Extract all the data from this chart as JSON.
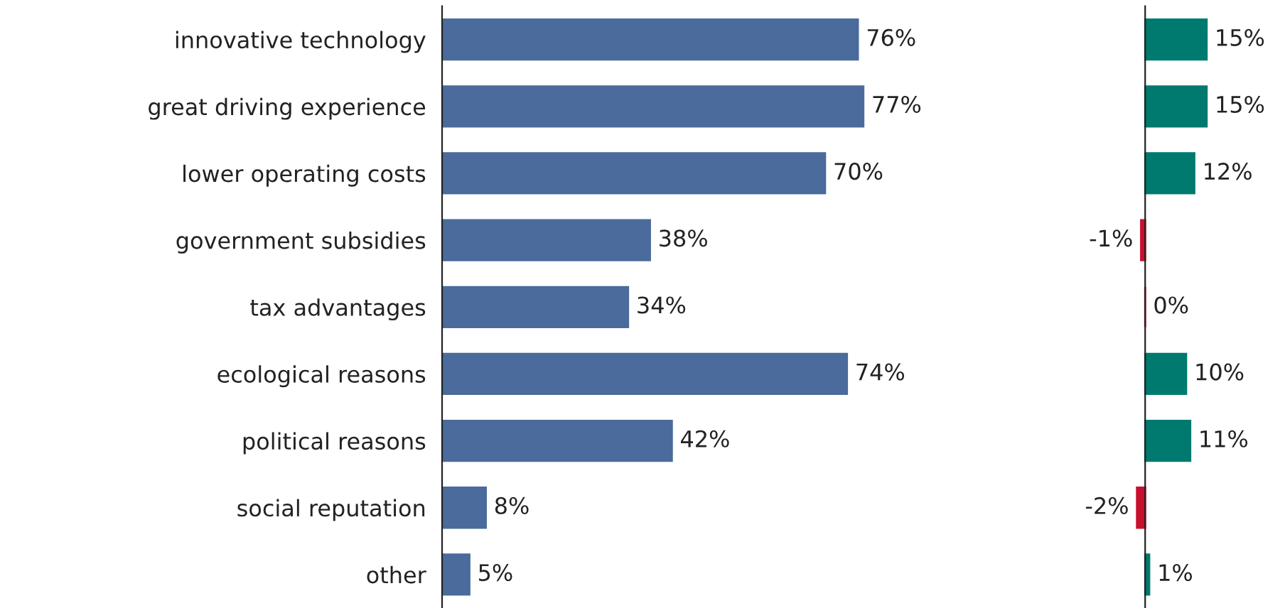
{
  "chart_data": [
    {
      "type": "bar",
      "orientation": "horizontal",
      "categories": [
        "innovative technology",
        "great driving experience",
        "lower operating costs",
        "government subsidies",
        "tax advantages",
        "ecological reasons",
        "political reasons",
        "social reputation",
        "other"
      ],
      "values": [
        76,
        77,
        70,
        38,
        34,
        74,
        42,
        8,
        5
      ],
      "color": "#4a6b9b",
      "value_labels": [
        "76%",
        "77%",
        "70%",
        "38%",
        "34%",
        "74%",
        "42%",
        "8%",
        "5%"
      ],
      "grid": false,
      "legend": false
    },
    {
      "type": "bar",
      "orientation": "horizontal",
      "categories": [
        null,
        null,
        null,
        null,
        null,
        null,
        null,
        null,
        null
      ],
      "values": [
        15,
        15,
        12,
        -1,
        0,
        10,
        11,
        -2,
        1
      ],
      "colors": [
        "#007a6e",
        "#007a6e",
        "#007a6e",
        "#c8102e",
        "#c8102e",
        "#007a6e",
        "#007a6e",
        "#c8102e",
        "#007a6e"
      ],
      "value_labels": [
        "15%",
        "15%",
        "12%",
        "-1%",
        "0%",
        "10%",
        "11%",
        "-2%",
        "1%"
      ],
      "grid": false,
      "legend": false
    }
  ]
}
